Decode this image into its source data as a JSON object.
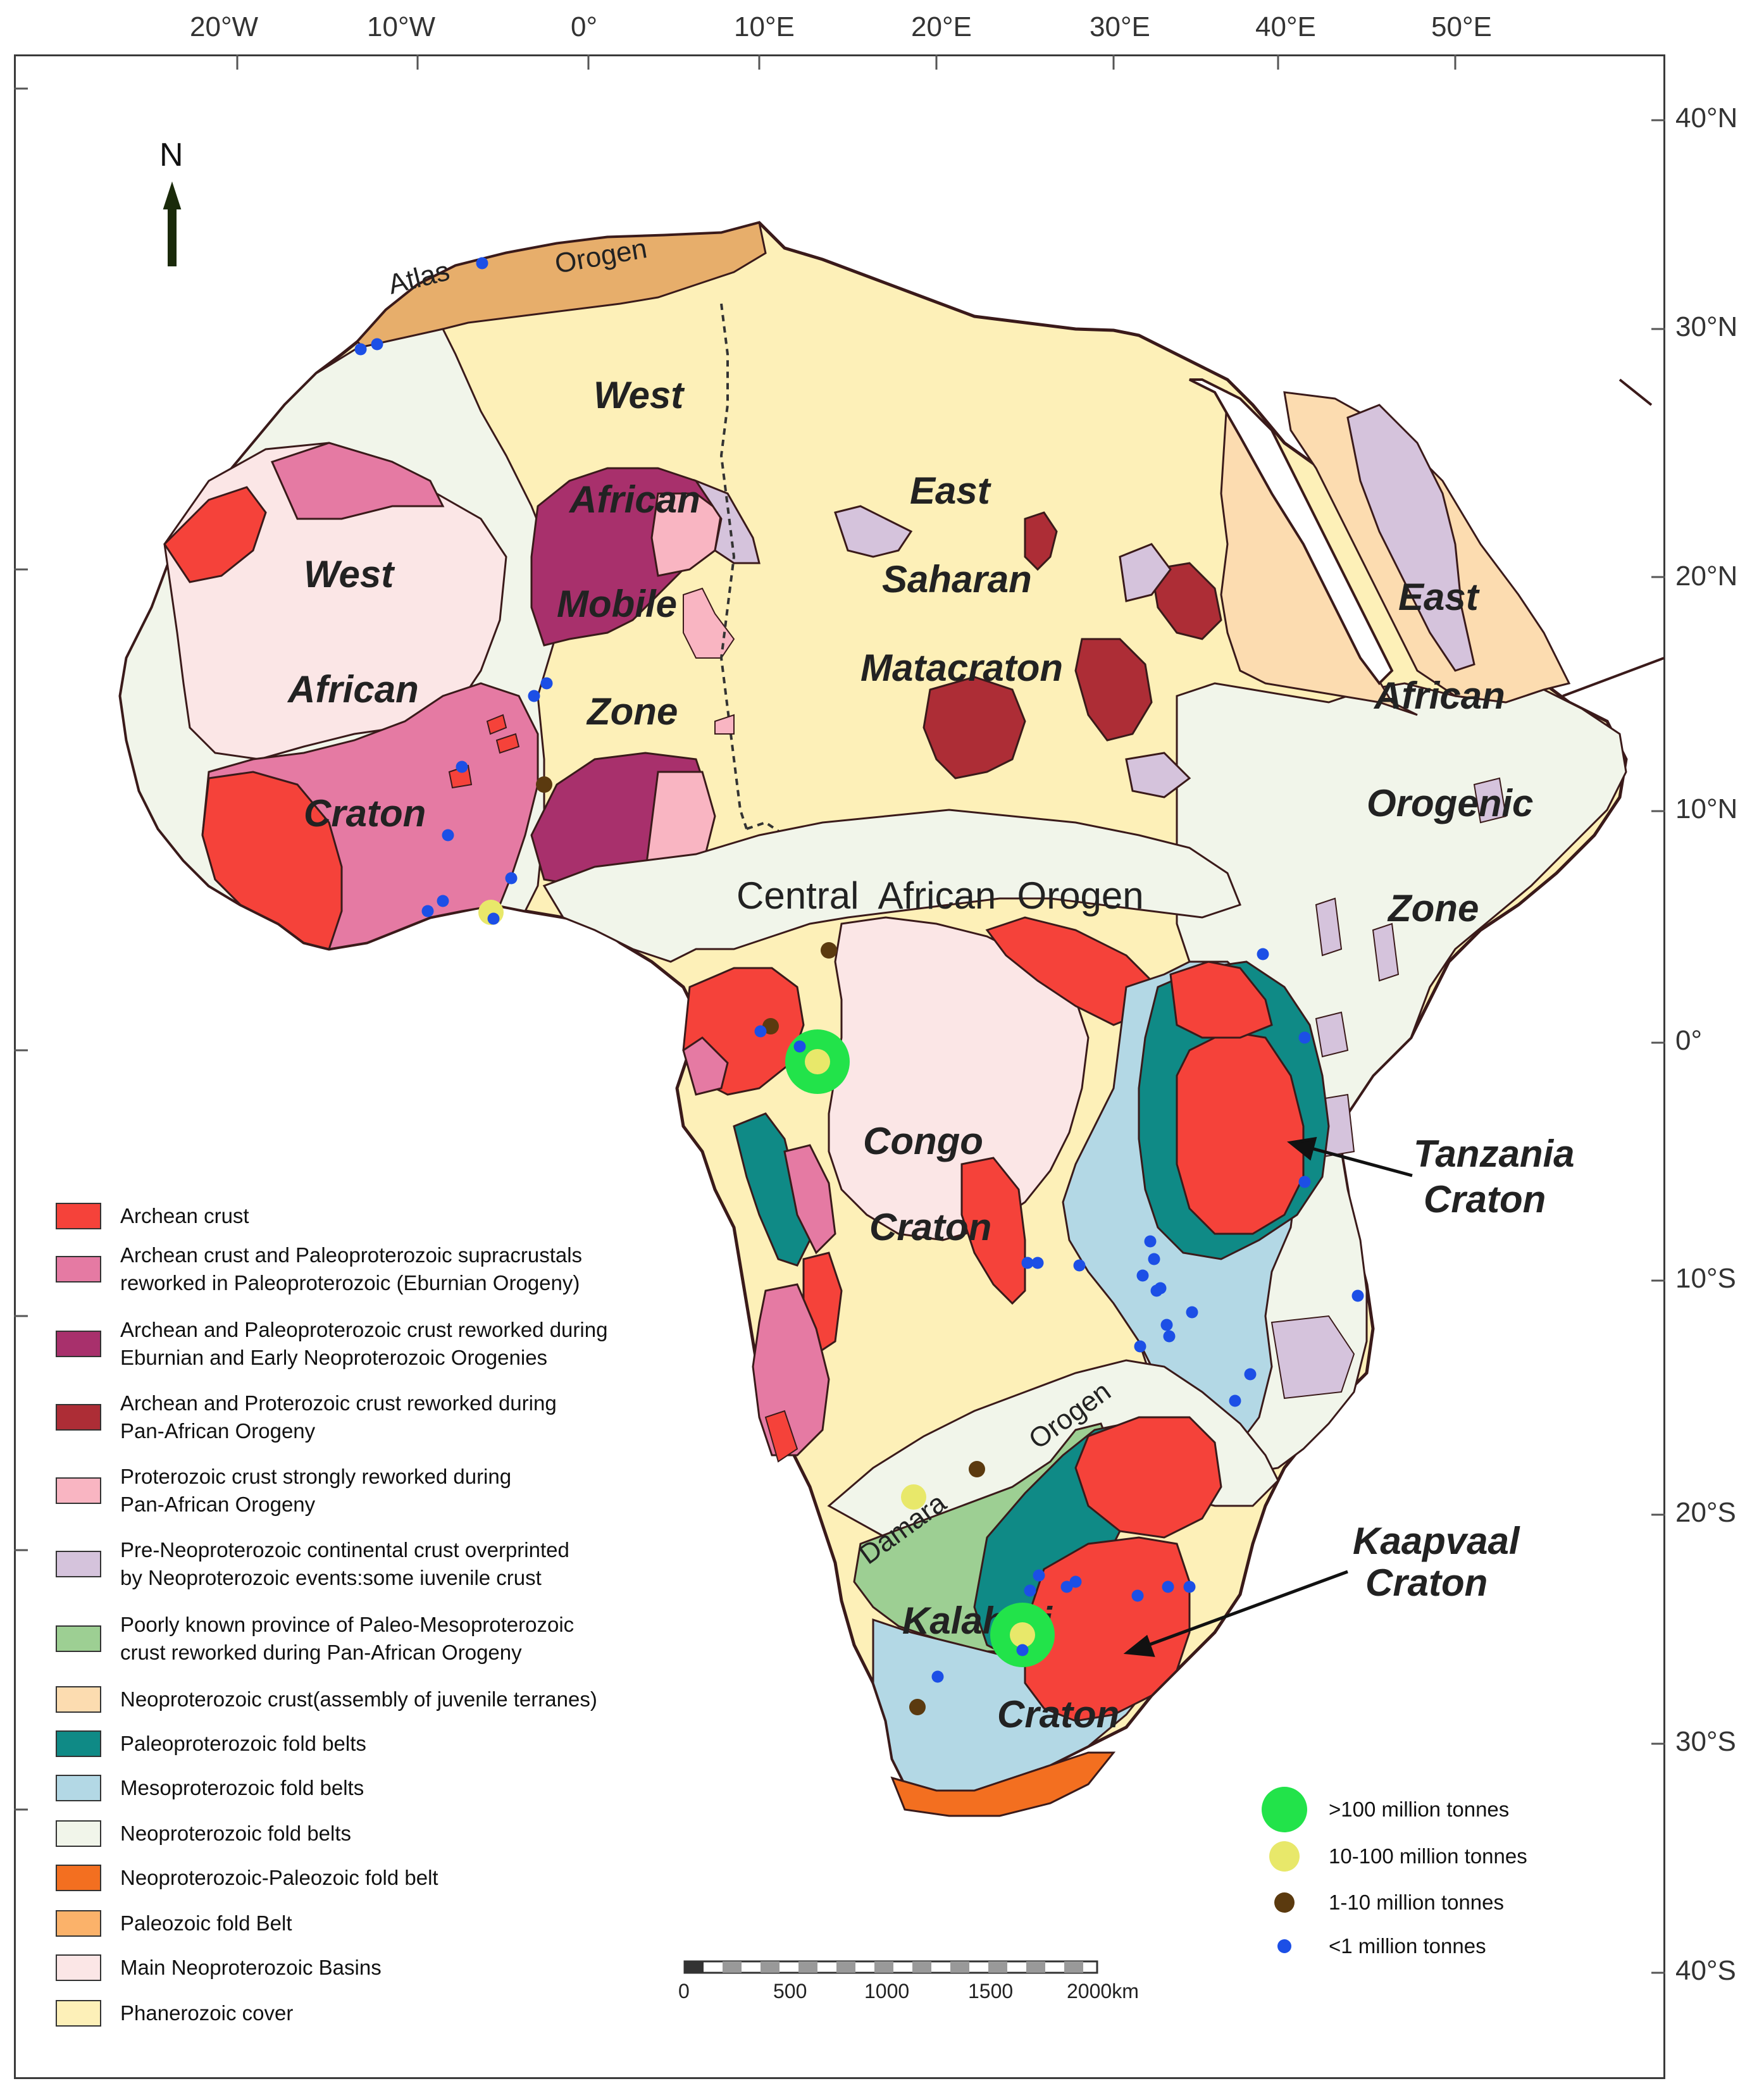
{
  "graticule": {
    "longitudes": [
      "20°W",
      "10°W",
      "0°",
      "10°E",
      "20°E",
      "30°E",
      "40°E",
      "50°E"
    ],
    "latitudes": [
      "40°N",
      "30°N",
      "20°N",
      "10°N",
      "0°",
      "10°S",
      "20°S",
      "30°S",
      "40°S"
    ]
  },
  "north_arrow": "N",
  "regions": {
    "atlas": [
      "Atlas",
      "Orogen"
    ],
    "west_african_mobile_zone": [
      "West",
      "African",
      "Mobile",
      "Zone"
    ],
    "west_african_craton": [
      "West",
      "African",
      "Craton"
    ],
    "east_saharan": [
      "East",
      "Saharan",
      "Matacraton"
    ],
    "east_african": [
      "East",
      "African",
      "Orogenic",
      "Zone"
    ],
    "central_african_orogen": "Central  African  Orogen",
    "congo_craton": [
      "Congo",
      "Craton"
    ],
    "tanzania_craton": [
      "Tanzania",
      "Craton"
    ],
    "damara_orogen": [
      "Damara",
      "Orogen"
    ],
    "kalahari_craton": [
      "Kalahari",
      "Craton"
    ],
    "kaapvaal_craton": [
      "Kaapvaal",
      "Craton"
    ]
  },
  "legend": [
    {
      "label": "Archean crust",
      "color": "#f5423a"
    },
    {
      "label": "Archean crust and Paleoproterozoic supracrustals\nreworked in Paleoproterozoic (Eburnian Orogeny)",
      "color": "#e57aa3"
    },
    {
      "label": "Archean and Paleoproterozoic crust reworked during\nEburnian and Early Neoproterozoic Orogenies",
      "color": "#a8306c"
    },
    {
      "label": "Archean and Proterozoic crust reworked during\nPan-African Orogeny",
      "color": "#ad2d36"
    },
    {
      "label": "Proterozoic crust strongly reworked during\nPan-African Orogeny",
      "color": "#f9b5c2"
    },
    {
      "label": "Pre-Neoproterozoic continental crust overprinted\nby Neoproterozoic events:some iuvenile crust",
      "color": "#d5c3dc"
    },
    {
      "label": "Poorly known province of Paleo-Mesoproterozoic\ncrust reworked during Pan-African Orogeny",
      "color": "#9dcf93"
    },
    {
      "label": "Neoproterozoic crust(assembly of juvenile terranes)",
      "color": "#fcdcb0"
    },
    {
      "label": "Paleoproterozoic fold belts",
      "color": "#0f8a86"
    },
    {
      "label": "Mesoproterozoic fold belts",
      "color": "#b3d8e5"
    },
    {
      "label": "Neoproterozoic fold belts",
      "color": "#f1f5ea"
    },
    {
      "label": "Neoproterozoic-Paleozoic fold belt",
      "color": "#f36f20"
    },
    {
      "label": "Paleozoic fold Belt",
      "color": "#fbb26a"
    },
    {
      "label": "Main Neoproterozoic Basins",
      "color": "#fbe6e6"
    },
    {
      "label": "Phanerozoic cover",
      "color": "#fdf0b8"
    }
  ],
  "size_legend": [
    {
      "label": ">100 million tonnes",
      "color": "#22e34a"
    },
    {
      "label": "10-100 million tonnes",
      "color": "#e8e86a"
    },
    {
      "label": "1-10 million tonnes",
      "color": "#5b3a0f"
    },
    {
      "label": "<1 million tonnes",
      "color": "#1c4fe6"
    }
  ],
  "scale_bar": {
    "ticks": [
      "0",
      "500",
      "1000",
      "1500",
      "2000km"
    ]
  },
  "colors": {
    "outline": "#3a1a1a",
    "dot_large": "#22e34a",
    "dot_medium": "#e8e86a",
    "dot_small": "#5b3a0f",
    "dot_tiny": "#1c4fe6"
  }
}
